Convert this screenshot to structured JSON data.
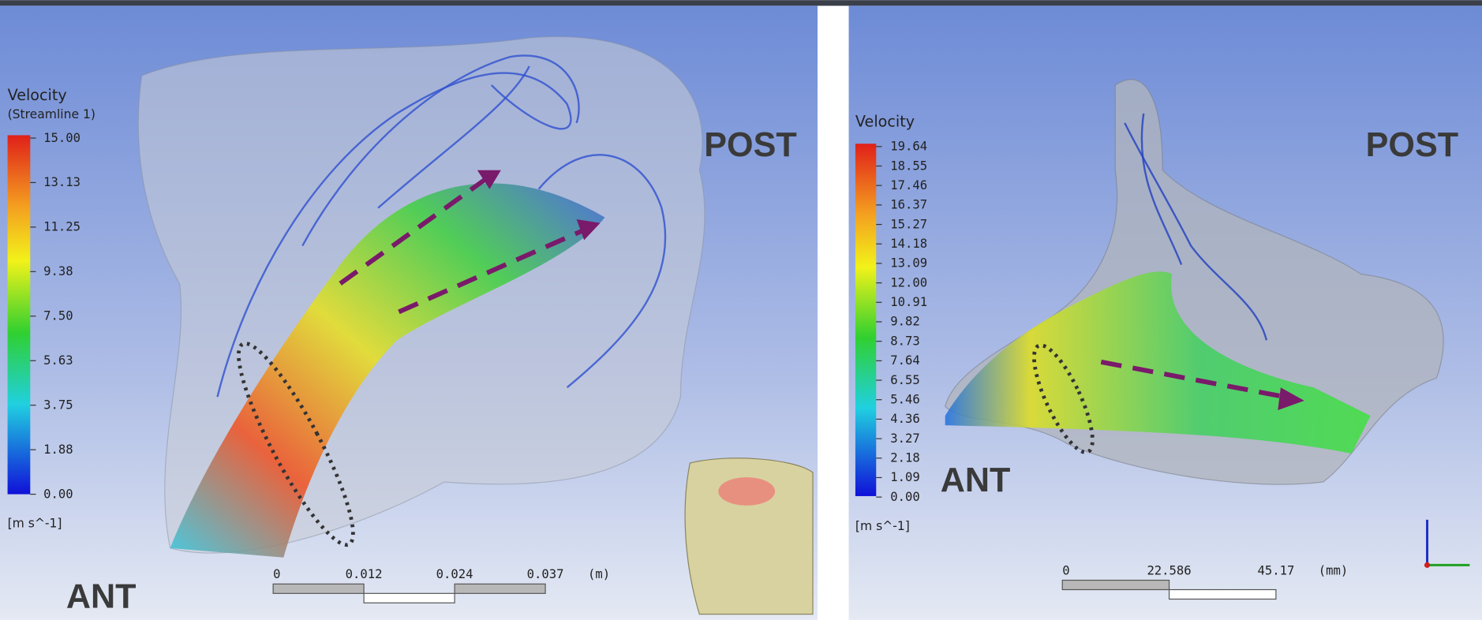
{
  "panels": [
    {
      "legend": {
        "title": "Velocity",
        "subtitle": "(Streamline 1)",
        "ticks": [
          "15.00",
          "13.13",
          "11.25",
          "9.38",
          "7.50",
          "5.63",
          "3.75",
          "1.88",
          "0.00"
        ],
        "unit": "[m s^-1]"
      },
      "post": "POST",
      "ant": "ANT",
      "scale": {
        "ticks": [
          "0",
          "0.012",
          "0.024",
          "0.037"
        ],
        "unit": "(m)"
      }
    },
    {
      "legend": {
        "title": "Velocity",
        "ticks": [
          "19.64",
          "18.55",
          "17.46",
          "16.37",
          "15.27",
          "14.18",
          "13.09",
          "12.00",
          "10.91",
          "9.82",
          "8.73",
          "7.64",
          "6.55",
          "5.46",
          "4.36",
          "3.27",
          "2.18",
          "1.09",
          "0.00"
        ],
        "unit": "[m s^-1]"
      },
      "post": "POST",
      "ant": "ANT",
      "scale": {
        "ticks": [
          "0",
          "22.586",
          "45.17"
        ],
        "unit": "(mm)"
      }
    }
  ]
}
